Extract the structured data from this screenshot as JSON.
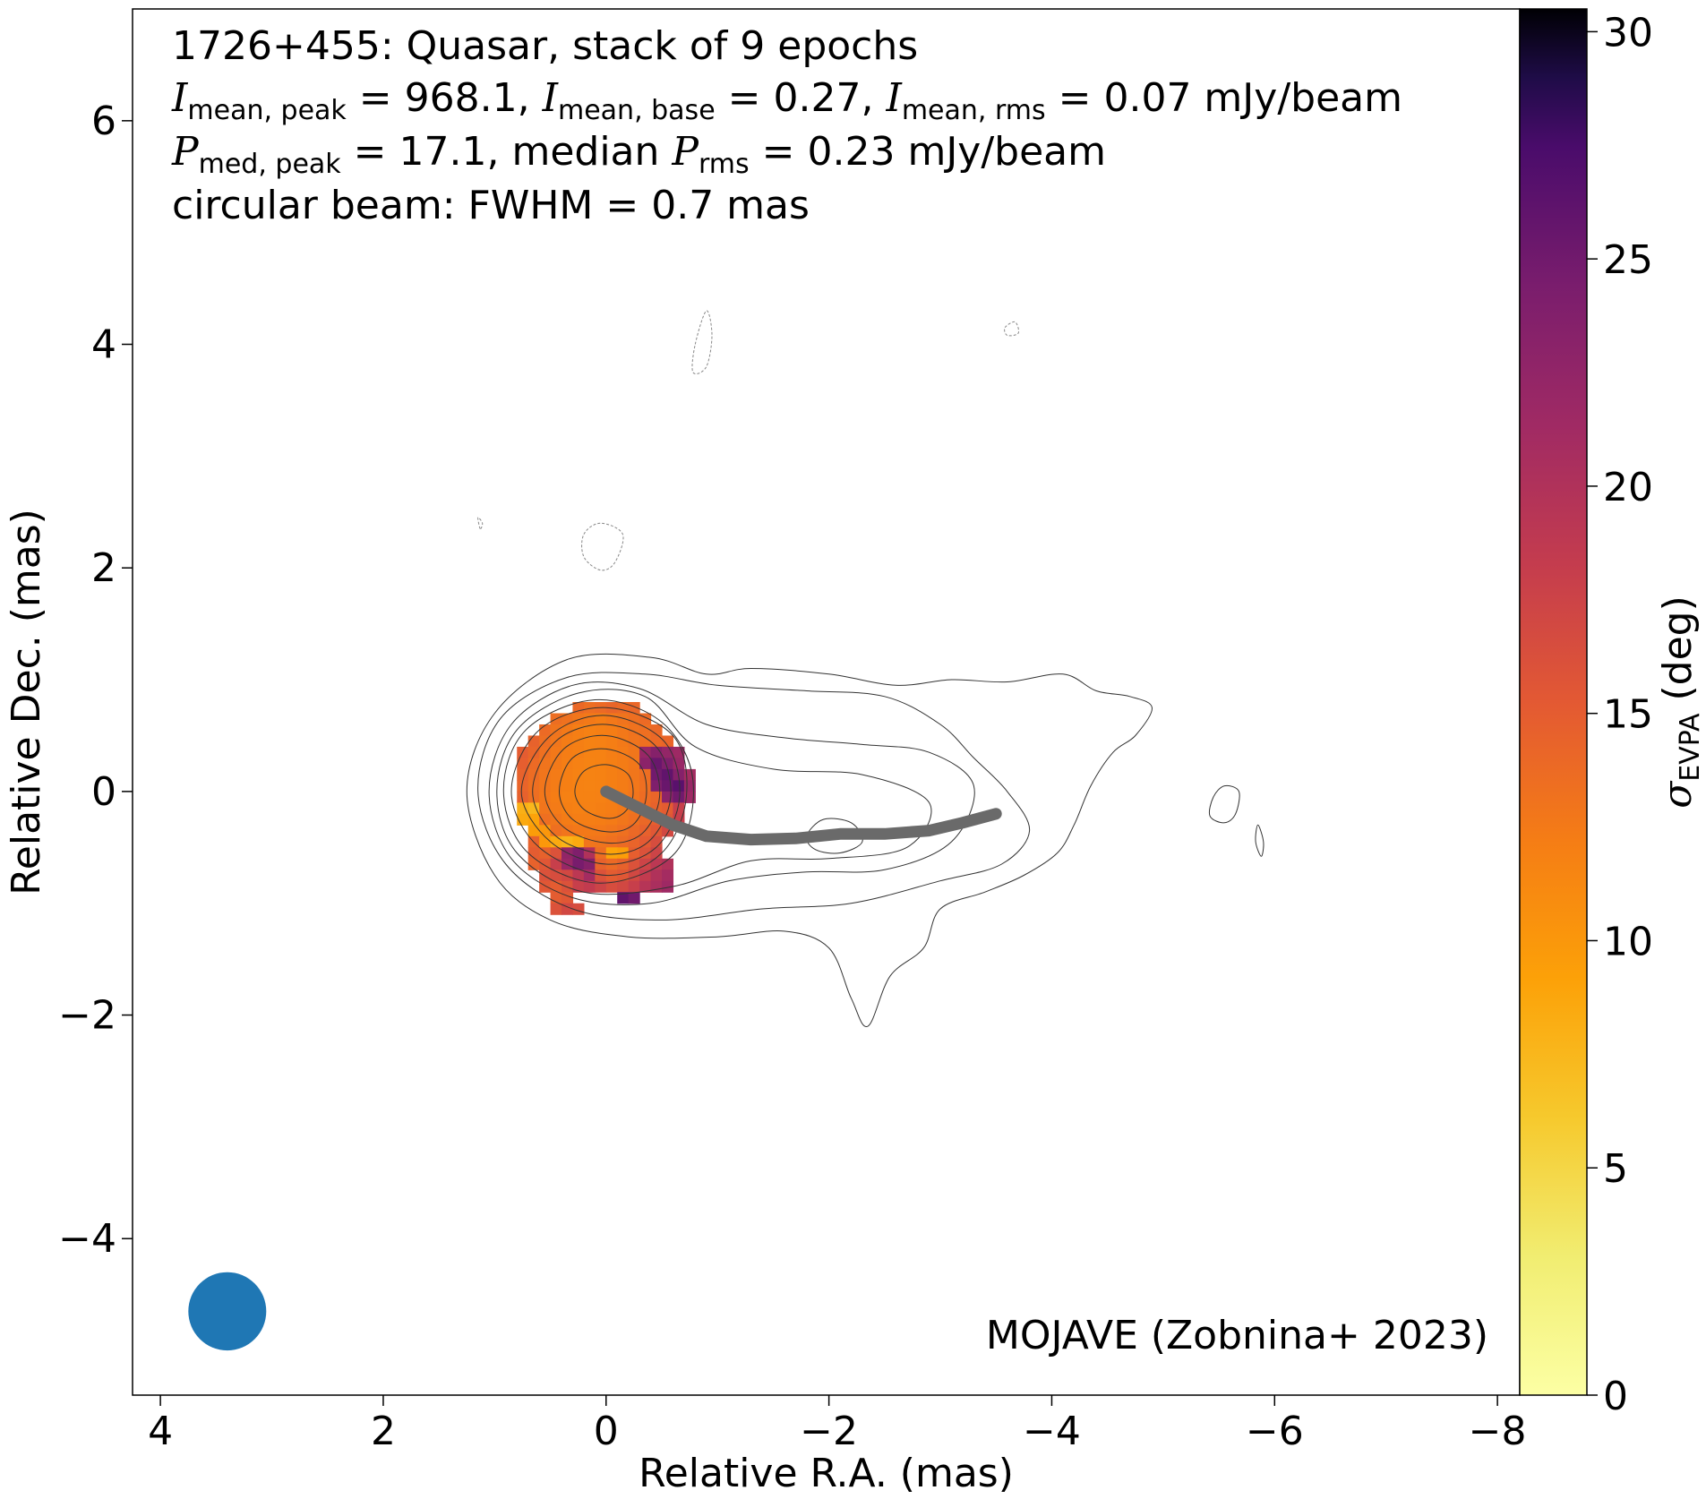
{
  "chart_data": {
    "type": "heatmap",
    "annotation": {
      "line1": "1726+455: Quasar, stack of 9 epochs",
      "line2": {
        "v1_sym": "I",
        "v1_sub": "mean, peak",
        "v1_val": " = 968.1, ",
        "v2_sym": "I",
        "v2_sub": "mean, base",
        "v2_val": " = 0.27, ",
        "v3_sym": "I",
        "v3_sub": "mean, rms",
        "v3_val": " = 0.07 mJy/beam"
      },
      "line3": {
        "v1_sym": "P",
        "v1_sub": "med, peak",
        "v1_val": " = 17.1, median ",
        "v2_sym": "P",
        "v2_sub": "rms",
        "v2_val": " = 0.23 mJy/beam"
      },
      "line4": "circular beam: FWHM = 0.7 mas"
    },
    "credit": "MOJAVE (Zobnina+ 2023)",
    "xlabel": "Relative R.A. (mas)",
    "ylabel": "Relative Dec. (mas)",
    "xlim": [
      4.25,
      -8.2
    ],
    "ylim": [
      -5.4,
      7.0
    ],
    "x_ticks": [
      4,
      2,
      0,
      -2,
      -4,
      -6,
      -8
    ],
    "x_tick_labels": [
      "4",
      "2",
      "0",
      "−2",
      "−4",
      "−6",
      "−8"
    ],
    "y_ticks": [
      -4,
      -2,
      0,
      2,
      4,
      6
    ],
    "y_tick_labels": [
      "−4",
      "−2",
      "0",
      "2",
      "4",
      "6"
    ],
    "colorbar": {
      "label_sym": "σ",
      "label_sub": "EVPA",
      "label_unit": " (deg)",
      "range": [
        0,
        30.5
      ],
      "ticks": [
        0,
        5,
        10,
        15,
        20,
        25,
        30
      ],
      "tick_labels": [
        "0",
        "5",
        "10",
        "15",
        "20",
        "25",
        "30"
      ],
      "colormap": "inferno_r"
    },
    "beam": {
      "x": 3.4,
      "y": -4.65,
      "fwhm_mas": 0.7,
      "color": "#1f77b4"
    },
    "ridge_line": {
      "color": "#6a6a6a",
      "points": [
        [
          0,
          0
        ],
        [
          -0.3,
          -0.15
        ],
        [
          -0.6,
          -0.3
        ],
        [
          -0.9,
          -0.4
        ],
        [
          -1.3,
          -0.43
        ],
        [
          -1.7,
          -0.42
        ],
        [
          -2.1,
          -0.38
        ],
        [
          -2.5,
          -0.38
        ],
        [
          -2.9,
          -0.35
        ],
        [
          -3.2,
          -0.28
        ],
        [
          -3.5,
          -0.2
        ]
      ]
    },
    "contours": [
      {
        "style": "solid",
        "points": [
          [
            1.25,
            0
          ],
          [
            1.0,
            0.7
          ],
          [
            0.35,
            1.18
          ],
          [
            -0.4,
            1.2
          ],
          [
            -0.9,
            1.05
          ],
          [
            -1.3,
            1.1
          ],
          [
            -2.0,
            1.05
          ],
          [
            -2.6,
            0.95
          ],
          [
            -3.1,
            1.0
          ],
          [
            -3.6,
            0.98
          ],
          [
            -4.1,
            1.05
          ],
          [
            -4.4,
            0.9
          ],
          [
            -4.7,
            0.85
          ],
          [
            -4.9,
            0.75
          ],
          [
            -4.75,
            0.5
          ],
          [
            -4.55,
            0.35
          ],
          [
            -4.35,
            0.05
          ],
          [
            -4.2,
            -0.3
          ],
          [
            -4.05,
            -0.55
          ],
          [
            -3.75,
            -0.75
          ],
          [
            -3.4,
            -0.9
          ],
          [
            -3.0,
            -1.05
          ],
          [
            -2.85,
            -1.4
          ],
          [
            -2.55,
            -1.65
          ],
          [
            -2.35,
            -2.1
          ],
          [
            -2.2,
            -1.85
          ],
          [
            -2.0,
            -1.4
          ],
          [
            -1.6,
            -1.25
          ],
          [
            -1.0,
            -1.3
          ],
          [
            -0.2,
            -1.3
          ],
          [
            0.5,
            -1.15
          ],
          [
            1.0,
            -0.75
          ]
        ]
      },
      {
        "style": "solid",
        "points": [
          [
            1.15,
            0
          ],
          [
            0.95,
            0.65
          ],
          [
            0.35,
            1.02
          ],
          [
            -0.35,
            1.05
          ],
          [
            -1.0,
            0.95
          ],
          [
            -1.8,
            0.9
          ],
          [
            -2.5,
            0.85
          ],
          [
            -3.0,
            0.6
          ],
          [
            -3.3,
            0.3
          ],
          [
            -3.6,
            0.0
          ],
          [
            -3.8,
            -0.35
          ],
          [
            -3.55,
            -0.65
          ],
          [
            -3.0,
            -0.8
          ],
          [
            -2.2,
            -1.0
          ],
          [
            -1.4,
            -1.05
          ],
          [
            -0.5,
            -1.15
          ],
          [
            0.3,
            -1.05
          ],
          [
            0.9,
            -0.65
          ]
        ]
      },
      {
        "style": "solid",
        "points": [
          [
            1.05,
            0
          ],
          [
            0.85,
            0.6
          ],
          [
            0.3,
            0.95
          ],
          [
            -0.3,
            0.92
          ],
          [
            -0.9,
            0.6
          ],
          [
            -1.6,
            0.48
          ],
          [
            -2.3,
            0.42
          ],
          [
            -2.9,
            0.35
          ],
          [
            -3.3,
            0.05
          ],
          [
            -3.1,
            -0.45
          ],
          [
            -2.5,
            -0.7
          ],
          [
            -1.8,
            -0.72
          ],
          [
            -1.1,
            -0.8
          ],
          [
            -0.4,
            -1.0
          ],
          [
            0.3,
            -0.95
          ],
          [
            0.85,
            -0.6
          ]
        ]
      },
      {
        "style": "solid",
        "points": [
          [
            0.98,
            0
          ],
          [
            0.8,
            0.55
          ],
          [
            0.25,
            0.88
          ],
          [
            -0.35,
            0.85
          ],
          [
            -0.8,
            0.4
          ],
          [
            -1.5,
            0.2
          ],
          [
            -2.3,
            0.15
          ],
          [
            -2.9,
            -0.1
          ],
          [
            -2.7,
            -0.5
          ],
          [
            -2.0,
            -0.6
          ],
          [
            -1.3,
            -0.62
          ],
          [
            -0.6,
            -0.85
          ],
          [
            0.2,
            -0.9
          ],
          [
            0.8,
            -0.55
          ]
        ]
      },
      {
        "style": "solid",
        "points": [
          [
            -1.8,
            -0.4
          ],
          [
            -1.95,
            -0.25
          ],
          [
            -2.2,
            -0.28
          ],
          [
            -2.3,
            -0.45
          ],
          [
            -2.1,
            -0.55
          ],
          [
            -1.88,
            -0.52
          ]
        ]
      },
      {
        "style": "solid",
        "points": [
          [
            0.92,
            0
          ],
          [
            0.72,
            0.55
          ],
          [
            0.1,
            0.82
          ],
          [
            -0.5,
            0.62
          ],
          [
            -0.78,
            0.1
          ],
          [
            -0.62,
            -0.55
          ],
          [
            0.05,
            -0.82
          ],
          [
            0.7,
            -0.55
          ]
        ]
      },
      {
        "style": "solid",
        "points": [
          [
            0.85,
            0
          ],
          [
            0.6,
            0.55
          ],
          [
            0.0,
            0.75
          ],
          [
            -0.6,
            0.5
          ],
          [
            -0.72,
            -0.05
          ],
          [
            -0.5,
            -0.55
          ],
          [
            0.0,
            -0.75
          ],
          [
            0.6,
            -0.5
          ]
        ]
      },
      {
        "style": "solid",
        "points": [
          [
            0.76,
            0
          ],
          [
            0.5,
            0.5
          ],
          [
            0.0,
            0.68
          ],
          [
            -0.52,
            0.45
          ],
          [
            -0.66,
            -0.05
          ],
          [
            -0.45,
            -0.5
          ],
          [
            0.0,
            -0.65
          ],
          [
            0.5,
            -0.45
          ]
        ]
      },
      {
        "style": "solid",
        "points": [
          [
            0.66,
            0
          ],
          [
            0.45,
            0.45
          ],
          [
            0.0,
            0.6
          ],
          [
            -0.45,
            0.4
          ],
          [
            -0.58,
            -0.05
          ],
          [
            -0.38,
            -0.45
          ],
          [
            0.0,
            -0.56
          ],
          [
            0.45,
            -0.4
          ]
        ]
      },
      {
        "style": "solid",
        "points": [
          [
            0.55,
            0
          ],
          [
            0.38,
            0.38
          ],
          [
            0.0,
            0.5
          ],
          [
            -0.38,
            0.32
          ],
          [
            -0.48,
            -0.05
          ],
          [
            -0.32,
            -0.38
          ],
          [
            0.0,
            -0.46
          ],
          [
            0.38,
            -0.32
          ]
        ]
      },
      {
        "style": "solid",
        "points": [
          [
            0.42,
            0
          ],
          [
            0.3,
            0.3
          ],
          [
            0.0,
            0.38
          ],
          [
            -0.3,
            0.24
          ],
          [
            -0.36,
            -0.05
          ],
          [
            -0.24,
            -0.3
          ],
          [
            0.0,
            -0.36
          ],
          [
            0.3,
            -0.25
          ]
        ]
      },
      {
        "style": "solid",
        "points": [
          [
            0.28,
            0
          ],
          [
            0.2,
            0.18
          ],
          [
            0.0,
            0.24
          ],
          [
            -0.2,
            0.15
          ],
          [
            -0.24,
            -0.05
          ],
          [
            -0.15,
            -0.2
          ],
          [
            0.0,
            -0.24
          ],
          [
            0.2,
            -0.16
          ]
        ]
      },
      {
        "style": "solid",
        "points": [
          [
            -5.45,
            -0.05
          ],
          [
            -5.55,
            0.05
          ],
          [
            -5.68,
            0.0
          ],
          [
            -5.65,
            -0.2
          ],
          [
            -5.55,
            -0.28
          ],
          [
            -5.42,
            -0.22
          ]
        ]
      },
      {
        "style": "solid",
        "points": [
          [
            -5.85,
            -0.3
          ],
          [
            -5.9,
            -0.45
          ],
          [
            -5.88,
            -0.58
          ],
          [
            -5.83,
            -0.45
          ]
        ]
      },
      {
        "style": "dashed",
        "points": [
          [
            -0.8,
            4.0
          ],
          [
            -0.9,
            4.3
          ],
          [
            -0.95,
            4.08
          ],
          [
            -0.9,
            3.8
          ],
          [
            -0.78,
            3.75
          ]
        ]
      },
      {
        "style": "dashed",
        "points": [
          [
            -3.58,
            4.15
          ],
          [
            -3.67,
            4.2
          ],
          [
            -3.7,
            4.1
          ],
          [
            -3.6,
            4.08
          ]
        ]
      },
      {
        "style": "dashed",
        "points": [
          [
            0.2,
            2.3
          ],
          [
            0.05,
            2.4
          ],
          [
            -0.15,
            2.3
          ],
          [
            -0.08,
            2.05
          ],
          [
            0.05,
            1.98
          ],
          [
            0.2,
            2.1
          ]
        ]
      },
      {
        "style": "dashed",
        "points": [
          [
            1.13,
            2.35
          ],
          [
            1.15,
            2.45
          ],
          [
            1.11,
            2.4
          ]
        ]
      }
    ],
    "evpa_spread_map": {
      "x_start": 0.75,
      "x_step": -0.1,
      "y_start": 0.75,
      "y_step": -0.1,
      "values": [
        [
          null,
          null,
          null,
          null,
          null,
          14.0,
          13.5,
          13.8,
          14.2,
          13.9,
          14.1,
          null,
          null,
          null,
          null,
          null
        ],
        [
          null,
          null,
          null,
          13.5,
          13.2,
          12.8,
          12.5,
          12.2,
          12.6,
          13.0,
          13.4,
          13.8,
          null,
          null,
          null,
          null
        ],
        [
          null,
          null,
          13.8,
          13.0,
          12.5,
          12.1,
          11.9,
          12.0,
          12.2,
          12.6,
          13.1,
          13.4,
          14.0,
          null,
          null,
          null
        ],
        [
          null,
          14.5,
          13.5,
          12.8,
          12.3,
          12.0,
          11.8,
          11.9,
          12.1,
          12.5,
          13.0,
          13.3,
          13.9,
          14.2,
          null,
          null
        ],
        [
          15.0,
          14.2,
          13.3,
          12.6,
          12.2,
          12.0,
          11.8,
          11.8,
          12.1,
          12.4,
          12.8,
          22.0,
          23.5,
          22.4,
          21.5,
          null
        ],
        [
          14.8,
          13.8,
          13.0,
          12.5,
          12.1,
          11.9,
          11.7,
          11.8,
          12.0,
          12.3,
          12.7,
          23.0,
          25.5,
          24.0,
          22.0,
          null
        ],
        [
          14.5,
          13.6,
          12.9,
          12.4,
          12.0,
          11.8,
          11.7,
          11.8,
          12.0,
          12.3,
          12.8,
          13.5,
          25.0,
          26.0,
          23.5,
          21.0
        ],
        [
          14.3,
          13.4,
          12.8,
          12.3,
          12.0,
          11.8,
          11.7,
          11.8,
          12.0,
          12.3,
          12.7,
          13.4,
          24.0,
          25.5,
          26.5,
          22.0
        ],
        [
          14.6,
          13.5,
          12.7,
          12.2,
          11.9,
          11.8,
          11.8,
          11.9,
          12.1,
          12.4,
          12.9,
          13.6,
          14.2,
          23.0,
          25.0,
          21.5
        ],
        [
          8.0,
          7.5,
          12.9,
          12.4,
          12.0,
          11.9,
          11.9,
          12.0,
          12.2,
          12.5,
          13.0,
          13.7,
          14.5,
          15.0,
          18.0,
          null
        ],
        [
          8.5,
          9.0,
          13.4,
          12.8,
          12.3,
          12.1,
          12.1,
          12.2,
          12.4,
          12.8,
          13.3,
          14.0,
          14.8,
          15.5,
          18.0,
          null
        ],
        [
          null,
          9.5,
          10.0,
          13.4,
          12.9,
          12.6,
          12.5,
          12.6,
          12.9,
          13.3,
          13.9,
          14.6,
          15.5,
          17.0,
          null,
          null
        ],
        [
          null,
          14.5,
          9.8,
          8.5,
          7.8,
          8.5,
          12.9,
          13.0,
          13.3,
          13.7,
          14.3,
          15.2,
          16.5,
          null,
          null,
          null
        ],
        [
          null,
          15.0,
          14.5,
          16.0,
          22.5,
          24.0,
          20.0,
          13.5,
          9.0,
          9.5,
          14.8,
          16.0,
          17.5,
          null,
          null,
          null
        ],
        [
          null,
          14.5,
          15.5,
          18.0,
          22.0,
          24.5,
          23.5,
          14.5,
          13.8,
          14.5,
          16.0,
          17.5,
          19.0,
          20.0,
          null,
          null
        ],
        [
          null,
          null,
          16.0,
          16.5,
          17.0,
          19.0,
          21.0,
          16.0,
          15.0,
          15.5,
          17.0,
          18.5,
          20.0,
          21.0,
          null,
          null
        ],
        [
          null,
          null,
          15.5,
          15.0,
          16.0,
          18.0,
          18.5,
          17.5,
          16.5,
          17.0,
          18.0,
          19.5,
          20.5,
          21.5,
          null,
          null
        ],
        [
          null,
          null,
          null,
          15.0,
          15.5,
          null,
          null,
          null,
          null,
          26.0,
          25.0,
          null,
          null,
          null,
          null,
          null
        ],
        [
          null,
          null,
          null,
          16.0,
          17.0,
          16.5,
          null,
          null,
          null,
          null,
          null,
          null,
          null,
          null,
          null,
          null
        ]
      ]
    }
  }
}
